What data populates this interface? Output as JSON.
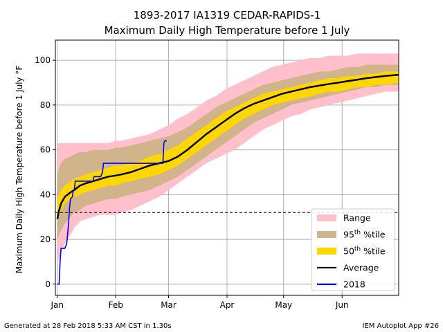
{
  "chart_data": {
    "type": "area",
    "title": "1893-2017 IA1319 CEDAR-RAPIDS-1",
    "subtitle": "Maximum Daily High Temperature before 1 July",
    "ylabel": "Maximum Daily High Temperature before 1 July °F",
    "xlabel": "",
    "x_ticks": [
      {
        "label": "Jan",
        "day": 1
      },
      {
        "label": "Feb",
        "day": 32
      },
      {
        "label": "Mar",
        "day": 60
      },
      {
        "label": "Apr",
        "day": 91
      },
      {
        "label": "May",
        "day": 121
      },
      {
        "label": "Jun",
        "day": 152
      }
    ],
    "xlim": [
      0,
      182
    ],
    "ylim": [
      -5,
      109
    ],
    "y_ticks": [
      0,
      20,
      40,
      60,
      80,
      100
    ],
    "grid": true,
    "reference_line": 32,
    "legend_position": "bottom-right",
    "colors": {
      "range": "#ffc0cb",
      "p95": "#d2b48c",
      "p50": "#ffd700",
      "average": "#000000",
      "year2018": "#0000ff",
      "reference": "#000000",
      "grid": "#b0b0b0"
    },
    "x": [
      1,
      2,
      3,
      5,
      8,
      10,
      13,
      16,
      20,
      24,
      28,
      32,
      35,
      40,
      45,
      50,
      55,
      60,
      65,
      70,
      75,
      80,
      85,
      90,
      95,
      100,
      105,
      110,
      115,
      120,
      125,
      130,
      135,
      140,
      145,
      150,
      155,
      160,
      165,
      170,
      175,
      182
    ],
    "series": [
      {
        "name": "Range",
        "kind": "band",
        "low": [
          10,
          12,
          14,
          18,
          22,
          25,
          28,
          29,
          30,
          31,
          31,
          31,
          32,
          33,
          35,
          37,
          39,
          42,
          45,
          48,
          51,
          54,
          56,
          58,
          60,
          63,
          66,
          69,
          71,
          73,
          75,
          76,
          78,
          79,
          80,
          81,
          82,
          83,
          84,
          85,
          86,
          86
        ],
        "high": [
          63,
          63,
          63,
          63,
          63,
          63,
          63,
          63,
          63,
          63,
          63,
          64,
          64,
          65,
          66,
          67,
          69,
          71,
          74,
          76,
          79,
          82,
          84,
          87,
          89,
          91,
          93,
          95,
          97,
          98,
          99,
          100,
          101,
          101,
          102,
          102,
          102,
          103,
          103,
          103,
          103,
          103
        ]
      },
      {
        "name": "95th %tile",
        "kind": "band",
        "low": [
          20,
          22,
          24,
          27,
          30,
          32,
          33,
          35,
          36,
          37,
          38,
          38,
          39,
          40,
          41,
          42,
          44,
          46,
          48,
          51,
          54,
          57,
          60,
          63,
          66,
          69,
          72,
          74,
          76,
          78,
          80,
          81,
          82,
          83,
          84,
          85,
          86,
          87,
          88,
          88,
          89,
          89
        ]
      },
      {
        "name": "95th %tile upper",
        "kind": "band_upper",
        "high": [
          49,
          52,
          54,
          56,
          57,
          58,
          59,
          59,
          60,
          60,
          60,
          61,
          61,
          62,
          63,
          64,
          65,
          66,
          68,
          70,
          73,
          76,
          79,
          81,
          83,
          85,
          87,
          89,
          90,
          91,
          92,
          93,
          94,
          95,
          95,
          96,
          97,
          97,
          98,
          98,
          98,
          98
        ]
      },
      {
        "name": "50th %tile",
        "kind": "band",
        "low": [
          28,
          31,
          33,
          36,
          38,
          39,
          40,
          41,
          42,
          43,
          44,
          44,
          45,
          46,
          47,
          48,
          49,
          51,
          53,
          56,
          59,
          62,
          65,
          68,
          71,
          74,
          76,
          78,
          80,
          81,
          82,
          83,
          84,
          85,
          86,
          86,
          87,
          88,
          88,
          89,
          89,
          90
        ]
      },
      {
        "name": "50th %tile upper",
        "kind": "band_upper",
        "high": [
          37,
          40,
          42,
          44,
          46,
          47,
          48,
          49,
          50,
          51,
          52,
          53,
          53,
          54,
          55,
          57,
          58,
          60,
          62,
          65,
          68,
          71,
          74,
          77,
          79,
          81,
          83,
          85,
          86,
          87,
          88,
          89,
          90,
          91,
          92,
          92,
          93,
          93,
          94,
          94,
          95,
          95
        ]
      },
      {
        "name": "Average",
        "kind": "line",
        "values": [
          29,
          33,
          36,
          39,
          41,
          42,
          44,
          45,
          46,
          47,
          48,
          48.5,
          49,
          50,
          51.5,
          53,
          54,
          55,
          57,
          60,
          63.5,
          67,
          70,
          73,
          76,
          78.5,
          80.5,
          82,
          83.5,
          85,
          86,
          87,
          88,
          88.7,
          89.4,
          90,
          90.7,
          91.3,
          92,
          92.5,
          93,
          93.5
        ]
      }
    ],
    "series_2018": {
      "name": "2018",
      "x": [
        1,
        2,
        2.5,
        3,
        5,
        6,
        7,
        7.5,
        8,
        9,
        9.5,
        10,
        10.5,
        20,
        20.5,
        24,
        25,
        25.5,
        57,
        57.5,
        58,
        59
      ],
      "values": [
        0,
        0,
        10,
        16,
        16,
        18,
        27,
        34,
        38,
        39,
        42,
        42,
        46,
        46,
        48,
        48,
        50,
        54,
        54,
        63,
        64,
        64
      ]
    }
  },
  "legend": [
    {
      "label": "Range",
      "kind": "patch",
      "color": "#ffc0cb"
    },
    {
      "label": "95",
      "sup": "th",
      "suffix": " %tile",
      "kind": "patch",
      "color": "#d2b48c"
    },
    {
      "label": "50",
      "sup": "th",
      "suffix": " %tile",
      "kind": "patch",
      "color": "#ffd700"
    },
    {
      "label": "Average",
      "kind": "line",
      "color": "#000000"
    },
    {
      "label": "2018",
      "kind": "line",
      "color": "#0000ff"
    }
  ],
  "footer": {
    "left": "Generated at 28 Feb 2018 5:33 AM CST in 1.30s",
    "right": "IEM Autoplot App #26"
  }
}
